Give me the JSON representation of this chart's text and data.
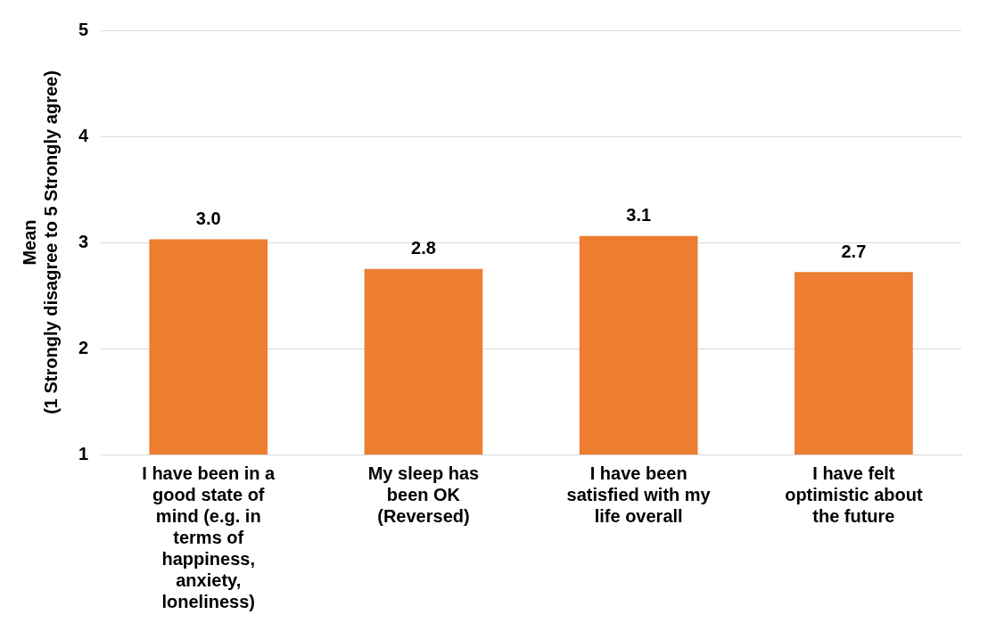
{
  "chart_data": {
    "type": "bar",
    "ylabel": "Mean\n(1 Strongly disagree to 5 Strongly agree)",
    "categories": [
      "I have been in a good state of mind (e.g. in terms of happiness, anxiety, loneliness)",
      "My sleep has been OK (Reversed)",
      "I have been satisfied with my life overall",
      "I have felt optimistic about the future"
    ],
    "values": [
      3.03,
      2.75,
      3.06,
      2.72
    ],
    "value_labels": [
      "3.0",
      "2.8",
      "3.1",
      "2.7"
    ],
    "color": "#ed7d31",
    "ylim": [
      1,
      5
    ],
    "yticks": [
      1,
      2,
      3,
      4,
      5
    ],
    "grid": "y",
    "legend": false
  }
}
